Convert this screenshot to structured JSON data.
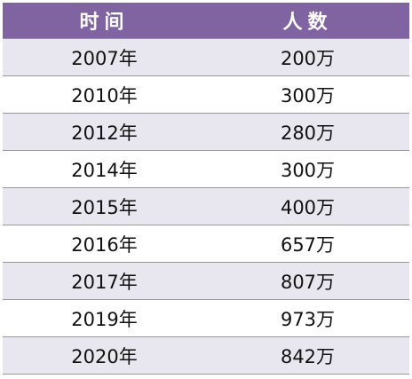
{
  "table": {
    "headers": [
      "时间",
      "人数"
    ],
    "rows": [
      {
        "year": "2007年",
        "count": "200万"
      },
      {
        "year": "2010年",
        "count": "300万"
      },
      {
        "year": "2012年",
        "count": "280万"
      },
      {
        "year": "2014年",
        "count": "300万"
      },
      {
        "year": "2015年",
        "count": "400万"
      },
      {
        "year": "2016年",
        "count": "657万"
      },
      {
        "year": "2017年",
        "count": "807万"
      },
      {
        "year": "2019年",
        "count": "973万"
      },
      {
        "year": "2020年",
        "count": "842万"
      }
    ]
  },
  "colors": {
    "header_bg": "#8064a2",
    "band_bg": "#e8e6ee",
    "rule": "#a08cc0"
  }
}
